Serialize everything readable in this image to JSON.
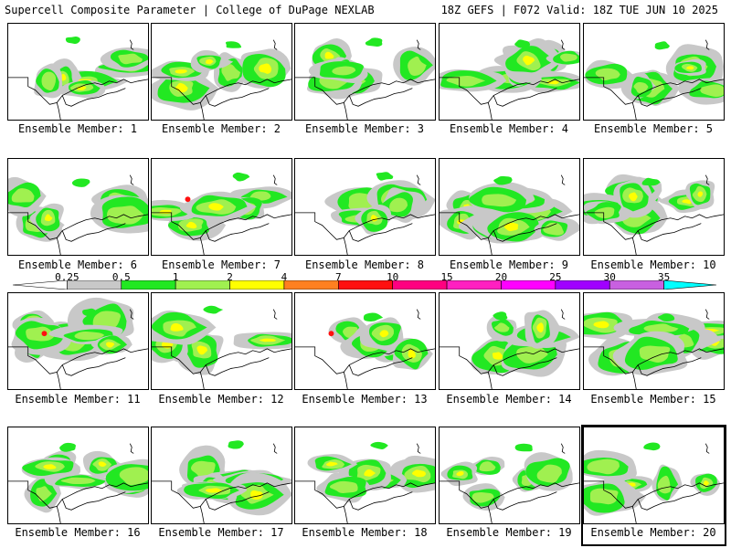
{
  "header": {
    "left_title": "Supercell Composite Parameter | College of DuPage NEXLAB",
    "right_title": "18Z GEFS | F072 Valid: 18Z TUE JUN 10 2025"
  },
  "colors": {
    "light": "#c8c8c8",
    "green": "#22e822",
    "lime": "#a0f050",
    "yellow": "#ffff00",
    "orange": "#ff8020",
    "red": "#ff1010",
    "deep_pink": "#ff0080",
    "magenta_pink": "#ff20c0",
    "magenta": "#ff00ff",
    "purple": "#a000ff",
    "violet": "#c860e0",
    "cyan": "#00ffff",
    "panel_border": "#000000",
    "background": "#ffffff"
  },
  "colorbar": {
    "ticks": [
      "0.25",
      "0.5",
      "1",
      "2",
      "4",
      "7",
      "10",
      "15",
      "20",
      "25",
      "30",
      "35"
    ],
    "segments": [
      "#c8c8c8",
      "#22e822",
      "#a0f050",
      "#ffff00",
      "#ff8020",
      "#ff1010",
      "#ff0080",
      "#ff20c0",
      "#ff00ff",
      "#a000ff",
      "#c860e0",
      "#00ffff"
    ]
  },
  "members": [
    {
      "label": "Ensemble Member: 1"
    },
    {
      "label": "Ensemble Member: 2"
    },
    {
      "label": "Ensemble Member: 3"
    },
    {
      "label": "Ensemble Member: 4"
    },
    {
      "label": "Ensemble Member: 5"
    },
    {
      "label": "Ensemble Member: 6"
    },
    {
      "label": "Ensemble Member: 7"
    },
    {
      "label": "Ensemble Member: 8"
    },
    {
      "label": "Ensemble Member: 9"
    },
    {
      "label": "Ensemble Member: 10"
    },
    {
      "label": "Ensemble Member: 11"
    },
    {
      "label": "Ensemble Member: 12"
    },
    {
      "label": "Ensemble Member: 13"
    },
    {
      "label": "Ensemble Member: 14"
    },
    {
      "label": "Ensemble Member: 15"
    },
    {
      "label": "Ensemble Member: 16"
    },
    {
      "label": "Ensemble Member: 17"
    },
    {
      "label": "Ensemble Member: 18"
    },
    {
      "label": "Ensemble Member: 19"
    },
    {
      "label": "Ensemble Member: 20",
      "selected": true
    }
  ]
}
